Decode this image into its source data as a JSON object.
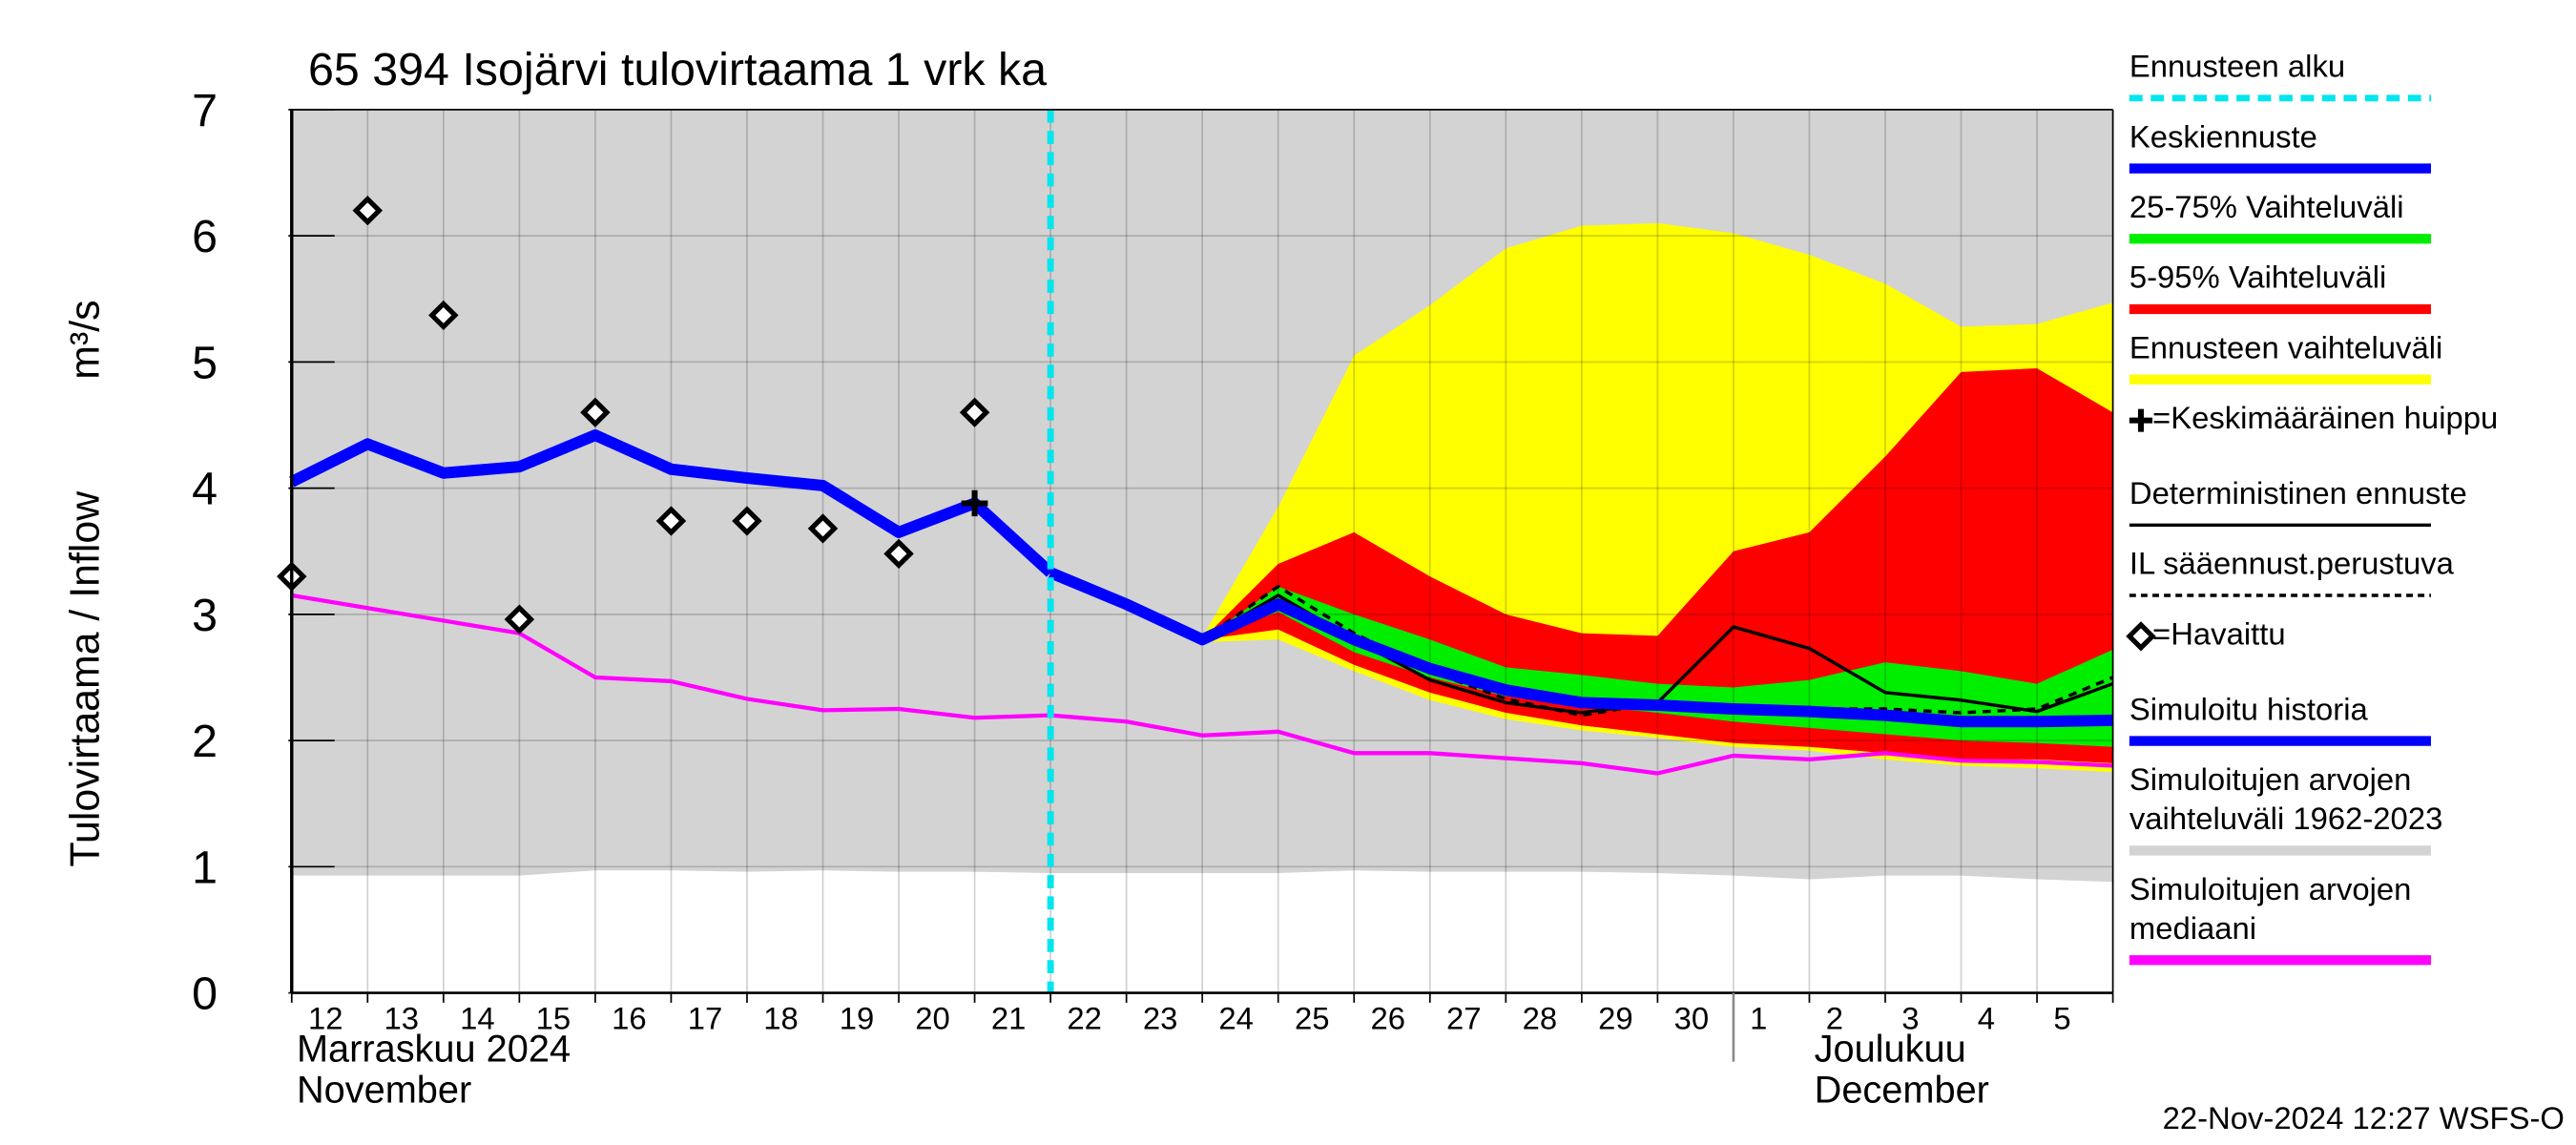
{
  "chart_data": {
    "type": "line",
    "title": "65 394 Isojärvi tulovirtaama 1 vrk ka",
    "ylabel": "Tulovirtaama / Inflow",
    "yunit": "m³/s",
    "categories": [
      "12",
      "13",
      "14",
      "15",
      "16",
      "17",
      "18",
      "19",
      "20",
      "21",
      "22",
      "23",
      "24",
      "25",
      "26",
      "27",
      "28",
      "29",
      "30",
      "1",
      "2",
      "3",
      "4",
      "5",
      null
    ],
    "ylim": [
      0,
      7
    ],
    "yticks": [
      0,
      1,
      2,
      3,
      4,
      5,
      6,
      7
    ],
    "grid": true,
    "month_labels": [
      {
        "text": "Marraskuu 2024\nNovember",
        "at": "12"
      },
      {
        "text": "Joulukuu\nDecember",
        "at": "2"
      }
    ],
    "forecast_start": {
      "name": "Ennusteen alku",
      "color": "#00e5ee",
      "at": "22"
    },
    "timestamp": "22-Nov-2024 12:27 WSFS-O",
    "series": [
      {
        "name": "Keskiennuste",
        "style": "line",
        "color": "#0000ff",
        "width": 7,
        "values": [
          null,
          null,
          null,
          null,
          null,
          null,
          null,
          null,
          null,
          null,
          3.33,
          3.08,
          2.8,
          3.08,
          2.8,
          2.57,
          2.4,
          2.3,
          2.28,
          2.25,
          2.23,
          2.2,
          2.15,
          2.15,
          2.16
        ]
      },
      {
        "name": "25-75% Vaihteluväli",
        "style": "band",
        "color": "#00ee00",
        "high": [
          null,
          null,
          null,
          null,
          null,
          null,
          null,
          null,
          null,
          null,
          3.33,
          3.08,
          2.8,
          3.22,
          3.0,
          2.8,
          2.58,
          2.52,
          2.45,
          2.42,
          2.48,
          2.62,
          2.55,
          2.45,
          2.72
        ],
        "low": [
          null,
          null,
          null,
          null,
          null,
          null,
          null,
          null,
          null,
          null,
          3.33,
          3.05,
          2.8,
          3.02,
          2.7,
          2.5,
          2.35,
          2.28,
          2.22,
          2.15,
          2.1,
          2.05,
          2.0,
          1.98,
          1.95
        ]
      },
      {
        "name": "5-95% Vaihteluväli",
        "style": "band",
        "color": "#ff0000",
        "high": [
          null,
          null,
          null,
          null,
          null,
          null,
          null,
          null,
          null,
          null,
          3.33,
          3.08,
          2.8,
          3.4,
          3.65,
          3.3,
          3.0,
          2.85,
          2.83,
          3.5,
          3.65,
          4.25,
          4.92,
          4.95,
          4.6
        ],
        "low": [
          null,
          null,
          null,
          null,
          null,
          null,
          null,
          null,
          null,
          null,
          3.33,
          3.05,
          2.8,
          2.88,
          2.6,
          2.38,
          2.22,
          2.12,
          2.05,
          1.98,
          1.95,
          1.9,
          1.85,
          1.85,
          1.82
        ]
      },
      {
        "name": "Ennusteen vaihteluväli",
        "style": "band",
        "color": "#ffff00",
        "high": [
          null,
          null,
          null,
          null,
          null,
          null,
          null,
          null,
          null,
          null,
          3.33,
          3.1,
          2.82,
          3.85,
          5.05,
          5.45,
          5.9,
          6.08,
          6.1,
          6.02,
          5.85,
          5.62,
          5.28,
          5.3,
          5.47
        ],
        "low": [
          null,
          null,
          null,
          null,
          null,
          null,
          null,
          null,
          null,
          null,
          3.33,
          3.05,
          2.78,
          2.8,
          2.55,
          2.32,
          2.17,
          2.08,
          2.02,
          1.95,
          1.92,
          1.85,
          1.8,
          1.78,
          1.75
        ]
      },
      {
        "name": "=Keskimääräinen huippu",
        "style": "marker",
        "marker": "plus",
        "color": "#000000",
        "values": [
          null,
          null,
          null,
          null,
          null,
          null,
          null,
          null,
          null,
          3.88,
          null,
          null,
          null,
          null,
          null,
          null,
          null,
          null,
          null,
          null,
          null,
          null,
          null,
          null,
          null
        ]
      },
      {
        "name": "Deterministinen ennuste",
        "style": "line",
        "color": "#000000",
        "width": 2,
        "values": [
          null,
          null,
          null,
          null,
          null,
          null,
          null,
          null,
          null,
          null,
          3.33,
          3.08,
          2.8,
          3.15,
          2.8,
          2.48,
          2.3,
          2.22,
          2.3,
          2.9,
          2.73,
          2.38,
          2.32,
          2.23,
          2.45
        ]
      },
      {
        "name": "IL sääennust.perustuva",
        "style": "line",
        "dash": true,
        "color": "#000000",
        "width": 2,
        "values": [
          null,
          null,
          null,
          null,
          null,
          null,
          null,
          null,
          null,
          null,
          3.33,
          3.08,
          2.8,
          3.22,
          2.85,
          2.55,
          2.33,
          2.2,
          2.3,
          2.28,
          2.25,
          2.25,
          2.22,
          2.25,
          2.5
        ]
      },
      {
        "name": "=Havaittu",
        "style": "marker",
        "marker": "diamond",
        "color": "#000000",
        "values": [
          3.3,
          6.2,
          5.37,
          2.96,
          4.6,
          3.74,
          3.74,
          3.68,
          3.48,
          4.6,
          null,
          null,
          null,
          null,
          null,
          null,
          null,
          null,
          null,
          null,
          null,
          null,
          null,
          null,
          null
        ]
      },
      {
        "name": "Simuloitu historia",
        "style": "line",
        "color": "#0000ff",
        "width": 7,
        "values": [
          4.05,
          4.35,
          4.12,
          4.17,
          4.42,
          4.15,
          4.08,
          4.02,
          3.65,
          3.88,
          3.33,
          null,
          null,
          null,
          null,
          null,
          null,
          null,
          null,
          null,
          null,
          null,
          null,
          null,
          null
        ]
      },
      {
        "name": "Simuloitujen arvojen\nvaihteluväli 1962-2023",
        "style": "band",
        "color": "#d3d3d3",
        "high": [
          7,
          7,
          7,
          7,
          7,
          7,
          7,
          7,
          7,
          7,
          7,
          7,
          7,
          7,
          7,
          7,
          7,
          7,
          7,
          7,
          7,
          7,
          7,
          7,
          7
        ],
        "low": [
          0.93,
          0.93,
          0.93,
          0.93,
          0.97,
          0.97,
          0.96,
          0.97,
          0.96,
          0.96,
          0.95,
          0.95,
          0.95,
          0.95,
          0.97,
          0.96,
          0.96,
          0.96,
          0.95,
          0.93,
          0.9,
          0.93,
          0.93,
          0.9,
          0.88
        ]
      },
      {
        "name": "Simuloitujen arvojen\nmediaani",
        "style": "line",
        "color": "#ff00ff",
        "width": 2.5,
        "values": [
          3.15,
          3.05,
          2.95,
          2.85,
          2.5,
          2.47,
          2.33,
          2.24,
          2.25,
          2.18,
          2.2,
          2.15,
          2.04,
          2.07,
          1.9,
          1.9,
          1.86,
          1.82,
          1.74,
          1.88,
          1.85,
          1.9,
          1.84,
          1.83,
          1.8
        ]
      }
    ]
  }
}
